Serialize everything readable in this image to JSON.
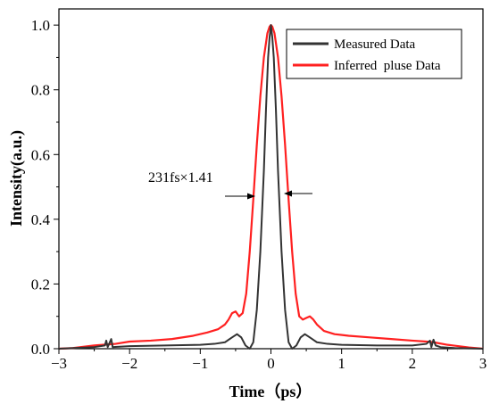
{
  "chart_data": {
    "type": "line",
    "xlabel": "Time（ps）",
    "ylabel": "Intensity(a.u.)",
    "xlim": [
      -3,
      3
    ],
    "ylim": [
      0,
      1.05
    ],
    "xticks": [
      -3,
      -2,
      -1,
      0,
      1,
      2,
      3
    ],
    "xtick_labels": [
      "−3",
      "−2",
      "−1",
      "0",
      "1",
      "2",
      "3"
    ],
    "yticks": [
      0.0,
      0.2,
      0.4,
      0.6,
      0.8,
      1.0
    ],
    "ytick_labels": [
      "0.0",
      "0.2",
      "0.4",
      "0.6",
      "0.8",
      "1.0"
    ],
    "grid": false,
    "legend_position": "top-right",
    "annotation": "231fs×1.41",
    "series": [
      {
        "name": "Measured Data",
        "color": "#333333",
        "x": [
          -3.0,
          -2.5,
          -2.35,
          -2.33,
          -2.31,
          -2.28,
          -2.26,
          -2.24,
          -2.0,
          -1.5,
          -1.0,
          -0.8,
          -0.65,
          -0.55,
          -0.48,
          -0.42,
          -0.36,
          -0.3,
          -0.25,
          -0.2,
          -0.15,
          -0.1,
          -0.07,
          -0.04,
          -0.02,
          0.0,
          0.02,
          0.04,
          0.07,
          0.1,
          0.15,
          0.2,
          0.25,
          0.3,
          0.36,
          0.42,
          0.48,
          0.55,
          0.65,
          0.8,
          1.0,
          1.5,
          2.0,
          2.2,
          2.25,
          2.27,
          2.3,
          2.33,
          2.4,
          2.6,
          3.0
        ],
        "y": [
          0.0,
          0.005,
          0.01,
          0.025,
          0.005,
          0.02,
          0.03,
          0.005,
          0.008,
          0.01,
          0.012,
          0.015,
          0.02,
          0.035,
          0.045,
          0.035,
          0.01,
          0.0,
          0.02,
          0.12,
          0.3,
          0.55,
          0.74,
          0.9,
          0.96,
          1.0,
          0.96,
          0.9,
          0.74,
          0.55,
          0.3,
          0.12,
          0.02,
          0.0,
          0.01,
          0.035,
          0.045,
          0.035,
          0.02,
          0.015,
          0.012,
          0.01,
          0.01,
          0.015,
          0.025,
          0.005,
          0.028,
          0.01,
          0.005,
          0.002,
          0.0
        ]
      },
      {
        "name": "Inferred  pluse Data",
        "color": "#ff2020",
        "x": [
          -3.0,
          -2.8,
          -2.5,
          -2.2,
          -2.0,
          -1.7,
          -1.4,
          -1.1,
          -0.9,
          -0.75,
          -0.65,
          -0.6,
          -0.55,
          -0.5,
          -0.45,
          -0.4,
          -0.35,
          -0.3,
          -0.25,
          -0.2,
          -0.15,
          -0.1,
          -0.05,
          -0.02,
          0.0,
          0.02,
          0.05,
          0.1,
          0.15,
          0.2,
          0.25,
          0.3,
          0.35,
          0.4,
          0.45,
          0.5,
          0.55,
          0.6,
          0.65,
          0.75,
          0.9,
          1.1,
          1.4,
          1.7,
          2.0,
          2.2,
          2.3,
          2.5,
          2.8,
          3.0
        ],
        "y": [
          0.0,
          0.002,
          0.01,
          0.015,
          0.022,
          0.025,
          0.03,
          0.04,
          0.05,
          0.06,
          0.075,
          0.09,
          0.11,
          0.115,
          0.1,
          0.11,
          0.17,
          0.3,
          0.46,
          0.63,
          0.78,
          0.9,
          0.975,
          0.995,
          1.0,
          0.995,
          0.975,
          0.9,
          0.78,
          0.63,
          0.46,
          0.3,
          0.17,
          0.1,
          0.09,
          0.095,
          0.1,
          0.09,
          0.075,
          0.055,
          0.045,
          0.04,
          0.035,
          0.03,
          0.025,
          0.022,
          0.02,
          0.012,
          0.004,
          0.0
        ]
      }
    ]
  }
}
